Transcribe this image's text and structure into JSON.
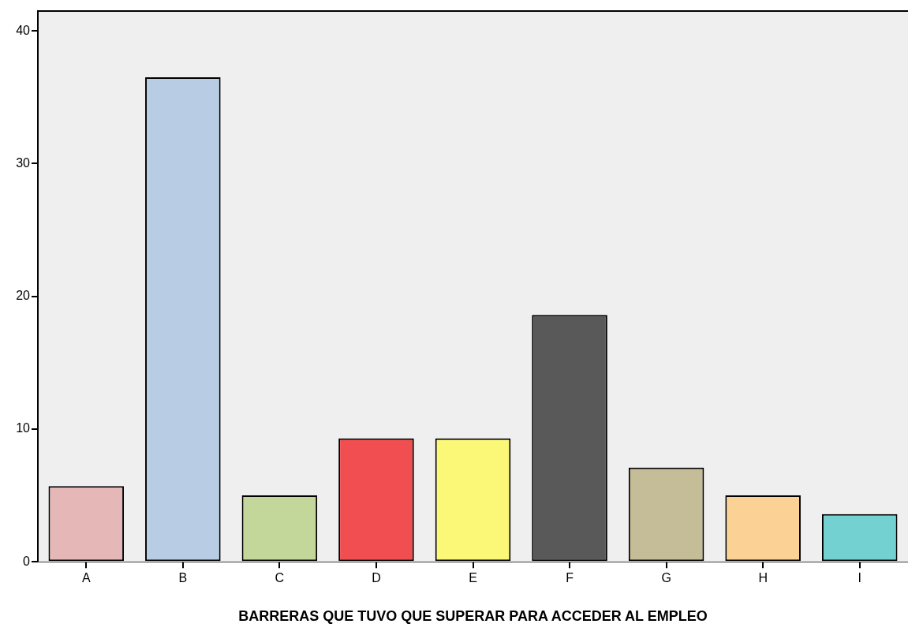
{
  "chart_data": {
    "type": "bar",
    "xlabel": "BARRERAS QUE TUVO QUE SUPERAR PARA ACCEDER AL EMPLEO",
    "categories": [
      "A",
      "B",
      "C",
      "D",
      "E",
      "F",
      "G",
      "H",
      "I"
    ],
    "values": [
      5.7,
      36.5,
      5.0,
      9.3,
      9.3,
      18.6,
      7.1,
      5.0,
      3.6
    ],
    "colors": [
      "#e5b8b7",
      "#b8cce4",
      "#c4d79b",
      "#f04e50",
      "#fbf777",
      "#595959",
      "#c4bd97",
      "#fcd195",
      "#73d1d1"
    ],
    "ylim": [
      0,
      41.5
    ],
    "yticks": [
      0,
      10,
      20,
      30,
      40
    ]
  }
}
